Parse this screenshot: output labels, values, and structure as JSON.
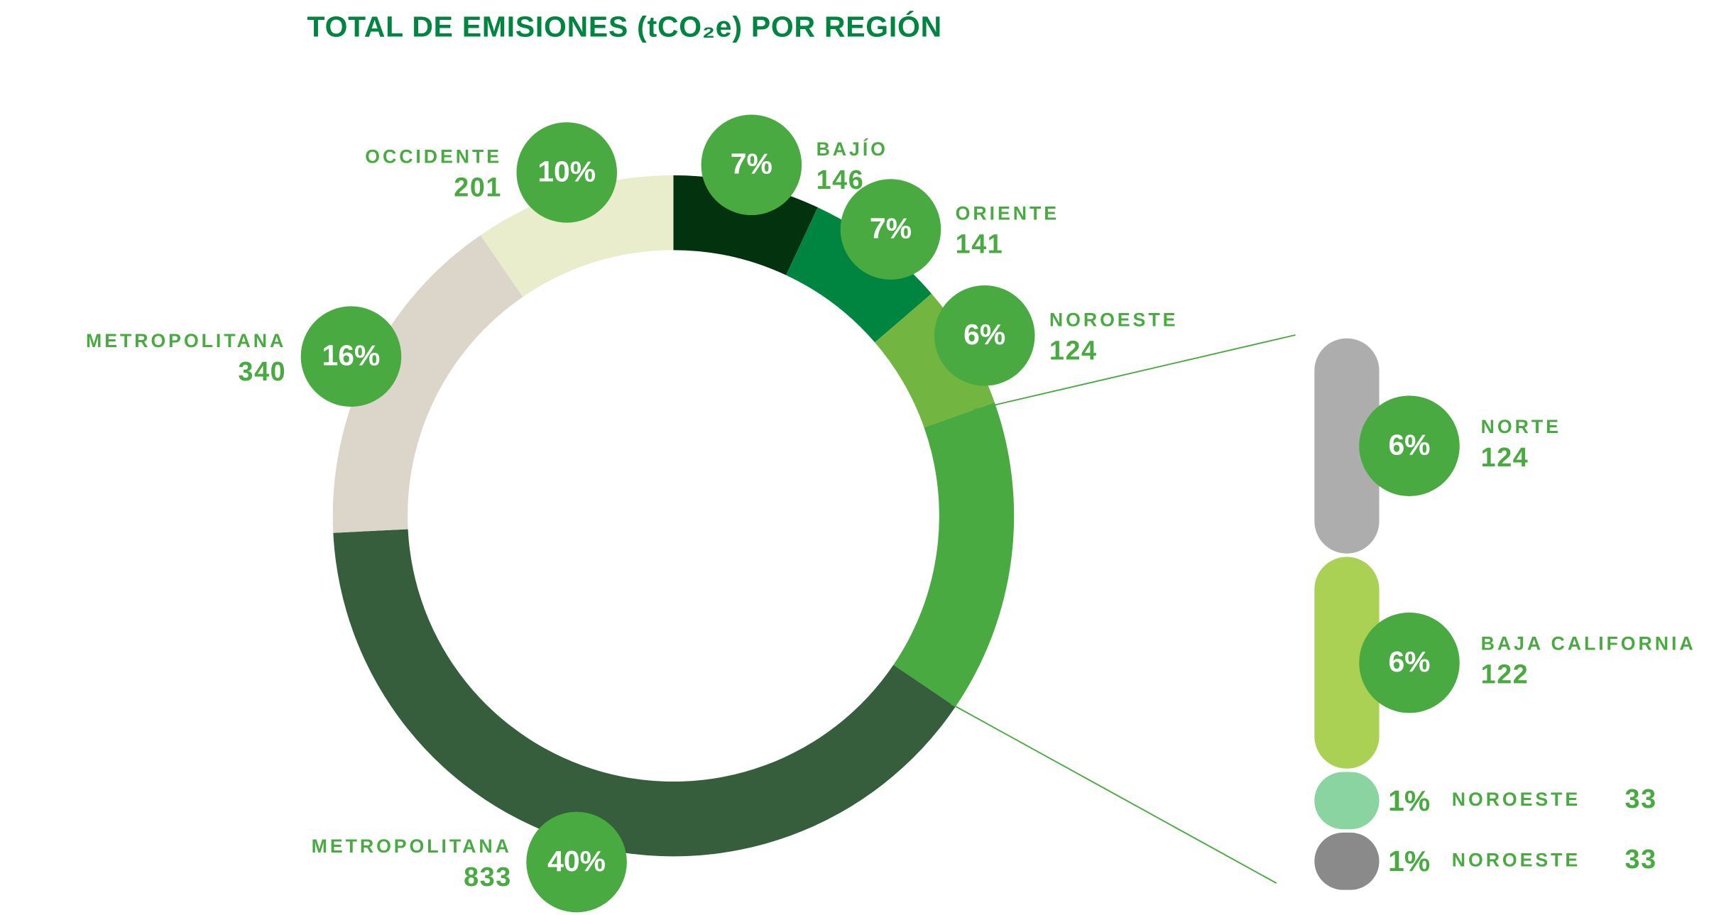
{
  "chart_data": {
    "type": "pie",
    "title": "TOTAL DE EMISIONES (tCO₂e) POR REGIÓN",
    "categories": [
      "BAJÍO",
      "ORIENTE",
      "NOROESTE",
      null,
      "METROPOLITANA",
      "METROPOLITANA",
      "OCCIDENTE"
    ],
    "values": [
      146,
      141,
      124,
      null,
      833,
      340,
      201
    ],
    "percent": [
      7,
      7,
      6,
      null,
      40,
      16,
      10
    ],
    "percent_labels": [
      "7%",
      "7%",
      "6%",
      null,
      "40%",
      "16%",
      "10%"
    ],
    "colors": [
      "#03320f",
      "#008540",
      "#72b641",
      "#4aaa42",
      "#365e3c",
      "#dcd6ca",
      "#e9edcc"
    ],
    "breakout": {
      "categories": [
        "NORTE",
        "BAJA CALIFORNIA",
        "NOROESTE",
        "NOROESTE"
      ],
      "values": [
        124,
        122,
        33,
        33
      ],
      "percent": [
        6,
        6,
        1,
        1
      ],
      "percent_labels": [
        "6%",
        "6%",
        "1%",
        "1%"
      ],
      "colors": [
        "#adadad",
        "#abd154",
        "#89d4a1",
        "#8a8a8a"
      ]
    },
    "bubble_color": "#4aaa42"
  }
}
